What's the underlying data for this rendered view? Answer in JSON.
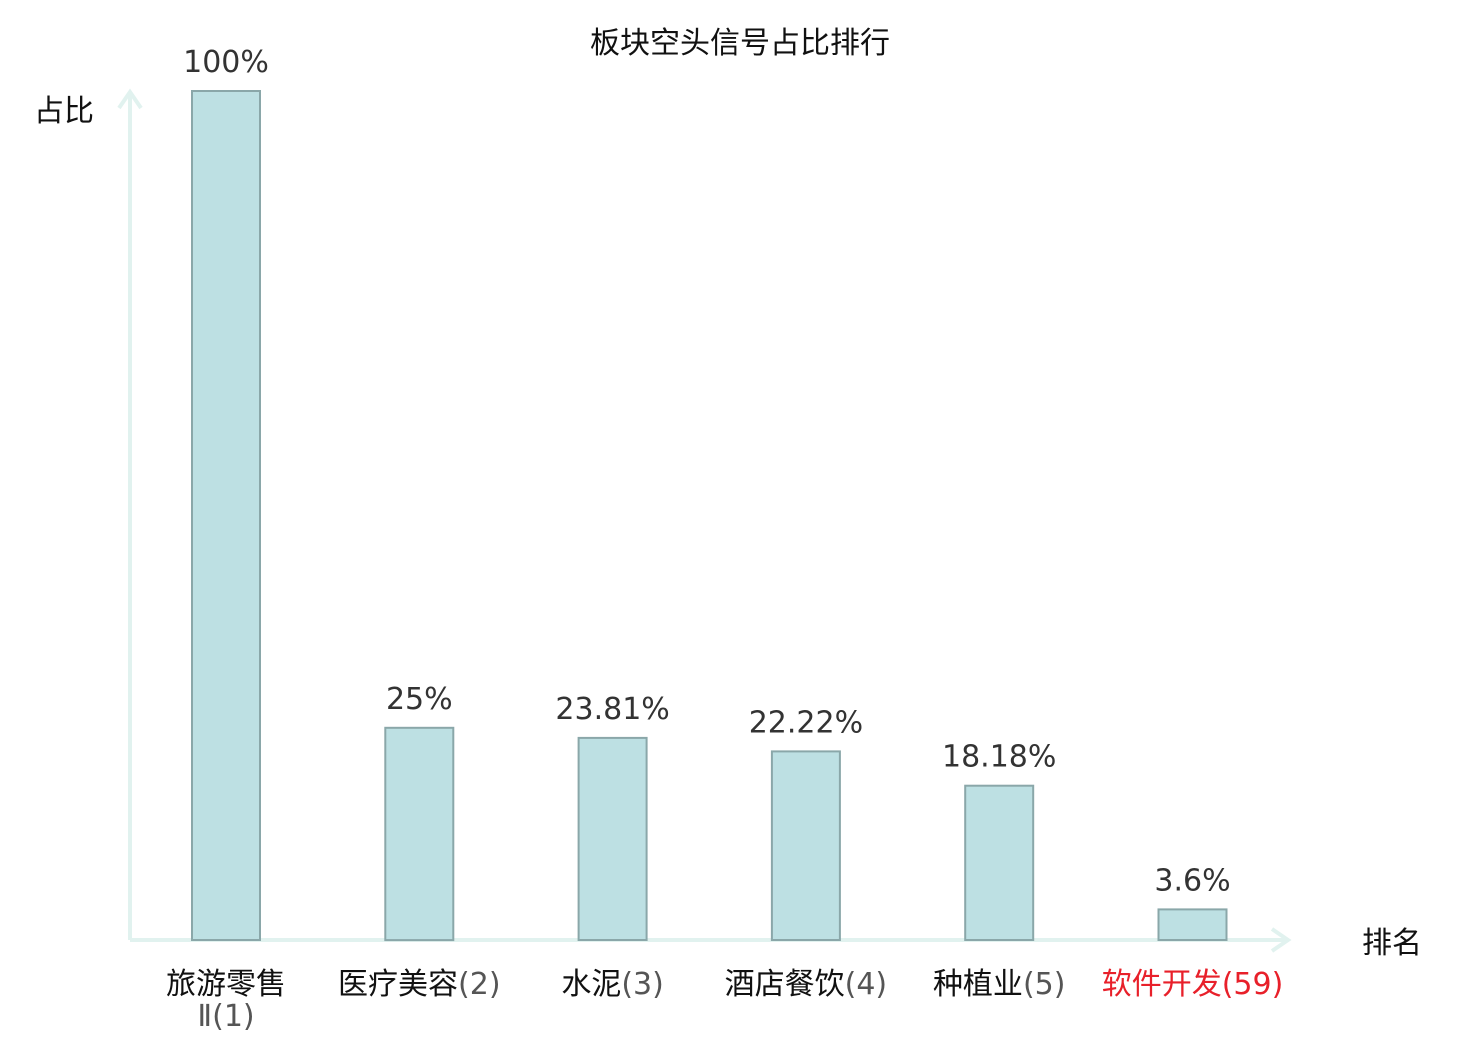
{
  "chart_data": {
    "type": "bar",
    "title": "板块空头信号占比排行",
    "ylabel": "占比",
    "xlabel": "排名",
    "ylim": [
      0,
      100
    ],
    "grid": false,
    "legend": "none",
    "categories": [
      {
        "name": "旅游零售",
        "name_line2": "Ⅱ",
        "rank": "(1)",
        "highlight": false
      },
      {
        "name": "医疗美容",
        "rank": "(2)",
        "highlight": false
      },
      {
        "name": "水泥",
        "rank": "(3)",
        "highlight": false
      },
      {
        "name": "酒店餐饮",
        "rank": "(4)",
        "highlight": false
      },
      {
        "name": "种植业",
        "rank": "(5)",
        "highlight": false
      },
      {
        "name": "软件开发",
        "rank": "(59)",
        "highlight": true
      }
    ],
    "values": [
      100,
      25,
      23.81,
      22.22,
      18.18,
      3.6
    ],
    "value_labels": [
      "100%",
      "25%",
      "23.81%",
      "22.22%",
      "18.18%",
      "3.6%"
    ],
    "colors": {
      "bar_fill": "#bde0e3",
      "bar_stroke": "#8aa7a9",
      "axis": "#e1f2ef",
      "highlight": "#e8202a"
    }
  }
}
